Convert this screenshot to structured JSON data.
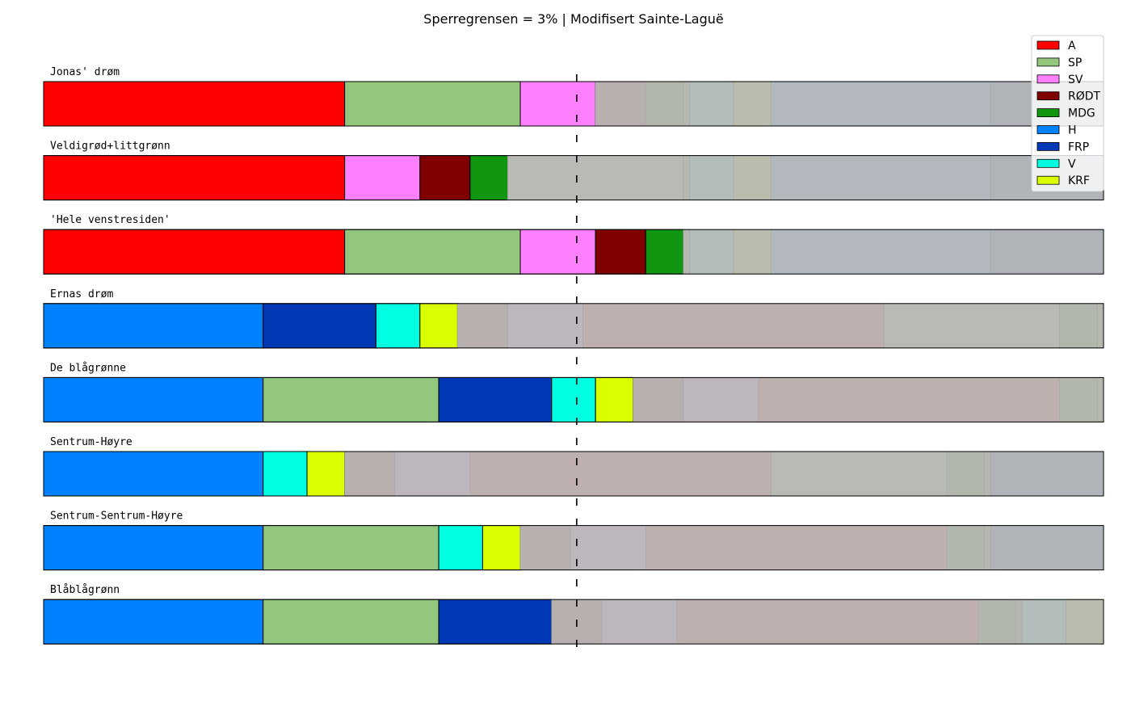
{
  "chart_data": {
    "type": "bar",
    "orientation": "horizontal-stacked",
    "title": "Sperregrensen = 3% | Modifisert Sainte-Laguë",
    "xlim": [
      0,
      169
    ],
    "majority_line": 85,
    "grid": false,
    "legend_placement": "top-right",
    "legend": [
      {
        "name": "A",
        "color": "#ff0000"
      },
      {
        "name": "SP",
        "color": "#94c77e"
      },
      {
        "name": "SV",
        "color": "#ff80ff"
      },
      {
        "name": "RØDT",
        "color": "#800000"
      },
      {
        "name": "MDG",
        "color": "#109610"
      },
      {
        "name": "H",
        "color": "#0082ff"
      },
      {
        "name": "FRP",
        "color": "#0038b5"
      },
      {
        "name": "V",
        "color": "#00ffe0"
      },
      {
        "name": "KRF",
        "color": "#daff00"
      }
    ],
    "rows": [
      {
        "label": "Jonas' drøm",
        "segments": [
          {
            "party": "A",
            "value": 48,
            "color": "#ff0000"
          },
          {
            "party": "SP",
            "value": 28,
            "color": "#94c77e"
          },
          {
            "party": "SV",
            "value": 12,
            "color": "#ff80ff"
          },
          {
            "value": 8,
            "color": "#b7b0af"
          },
          {
            "value": 6,
            "color": "#b2b7ae"
          },
          {
            "value": 1,
            "color": "#b5b8b0"
          },
          {
            "value": 7,
            "color": "#b2bcba"
          },
          {
            "value": 6,
            "color": "#babcad"
          },
          {
            "value": 35,
            "color": "#b2b8bd"
          },
          {
            "value": 18,
            "color": "#b0b3b8"
          }
        ]
      },
      {
        "label": "Veldigrød+littgrønn",
        "segments": [
          {
            "party": "A",
            "value": 48,
            "color": "#ff0000"
          },
          {
            "party": "SV",
            "value": 12,
            "color": "#ff80ff"
          },
          {
            "party": "RØDT",
            "value": 8,
            "color": "#800000"
          },
          {
            "party": "MDG",
            "value": 6,
            "color": "#109610"
          },
          {
            "value": 28,
            "color": "#b8bab5"
          },
          {
            "value": 1,
            "color": "#b5b8b0"
          },
          {
            "value": 7,
            "color": "#b2bcba"
          },
          {
            "value": 6,
            "color": "#babcad"
          },
          {
            "value": 35,
            "color": "#b2b8bd"
          },
          {
            "value": 18,
            "color": "#b0b3b8"
          }
        ]
      },
      {
        "label": "'Hele venstresiden'",
        "segments": [
          {
            "party": "A",
            "value": 48,
            "color": "#ff0000"
          },
          {
            "party": "SP",
            "value": 28,
            "color": "#94c77e"
          },
          {
            "party": "SV",
            "value": 12,
            "color": "#ff80ff"
          },
          {
            "party": "RØDT",
            "value": 8,
            "color": "#800000"
          },
          {
            "party": "MDG",
            "value": 6,
            "color": "#109610"
          },
          {
            "value": 1,
            "color": "#b5b8b0"
          },
          {
            "value": 7,
            "color": "#b2bcba"
          },
          {
            "value": 6,
            "color": "#babcad"
          },
          {
            "value": 35,
            "color": "#b2b8bd"
          },
          {
            "value": 18,
            "color": "#b0b3b8"
          }
        ]
      },
      {
        "label": "Ernas drøm",
        "segments": [
          {
            "party": "H",
            "value": 35,
            "color": "#0082ff"
          },
          {
            "party": "FRP",
            "value": 18,
            "color": "#0038b5"
          },
          {
            "party": "V",
            "value": 7,
            "color": "#00ffe0"
          },
          {
            "party": "KRF",
            "value": 6,
            "color": "#daff00"
          },
          {
            "value": 8,
            "color": "#b7b0af"
          },
          {
            "value": 12,
            "color": "#beb6bd"
          },
          {
            "value": 48,
            "color": "#bdb0af"
          },
          {
            "value": 28,
            "color": "#b8bab5"
          },
          {
            "value": 6,
            "color": "#b2b7ae"
          },
          {
            "value": 1,
            "color": "#b5b8b0"
          }
        ]
      },
      {
        "label": "De blågrønne",
        "segments": [
          {
            "party": "H",
            "value": 35,
            "color": "#0082ff"
          },
          {
            "party": "SP",
            "value": 28,
            "color": "#94c77e"
          },
          {
            "party": "FRP",
            "value": 18,
            "color": "#0038b5"
          },
          {
            "party": "V",
            "value": 7,
            "color": "#00ffe0"
          },
          {
            "party": "KRF",
            "value": 6,
            "color": "#daff00"
          },
          {
            "value": 8,
            "color": "#b7b0af"
          },
          {
            "value": 12,
            "color": "#beb6bd"
          },
          {
            "value": 48,
            "color": "#bdb0af"
          },
          {
            "value": 6,
            "color": "#b2b7ae"
          },
          {
            "value": 1,
            "color": "#b5b8b0"
          }
        ]
      },
      {
        "label": "Sentrum-Høyre",
        "segments": [
          {
            "party": "H",
            "value": 35,
            "color": "#0082ff"
          },
          {
            "party": "V",
            "value": 7,
            "color": "#00ffe0"
          },
          {
            "party": "KRF",
            "value": 6,
            "color": "#daff00"
          },
          {
            "value": 8,
            "color": "#b7b0af"
          },
          {
            "value": 12,
            "color": "#beb6bd"
          },
          {
            "value": 48,
            "color": "#bdb0af"
          },
          {
            "value": 28,
            "color": "#b8bab5"
          },
          {
            "value": 6,
            "color": "#b2b7ae"
          },
          {
            "value": 1,
            "color": "#b5b8b0"
          },
          {
            "value": 18,
            "color": "#b0b3b8"
          }
        ]
      },
      {
        "label": "Sentrum-Sentrum-Høyre",
        "segments": [
          {
            "party": "H",
            "value": 35,
            "color": "#0082ff"
          },
          {
            "party": "SP",
            "value": 28,
            "color": "#94c77e"
          },
          {
            "party": "V",
            "value": 7,
            "color": "#00ffe0"
          },
          {
            "party": "KRF",
            "value": 6,
            "color": "#daff00"
          },
          {
            "value": 8,
            "color": "#b7b0af"
          },
          {
            "value": 12,
            "color": "#beb6bd"
          },
          {
            "value": 48,
            "color": "#bdb0af"
          },
          {
            "value": 6,
            "color": "#b2b7ae"
          },
          {
            "value": 1,
            "color": "#b5b8b0"
          },
          {
            "value": 18,
            "color": "#b0b3b8"
          }
        ]
      },
      {
        "label": "Blåblågrønn",
        "segments": [
          {
            "party": "H",
            "value": 35,
            "color": "#0082ff"
          },
          {
            "party": "SP",
            "value": 28,
            "color": "#94c77e"
          },
          {
            "party": "FRP",
            "value": 18,
            "color": "#0038b5"
          },
          {
            "value": 8,
            "color": "#b7b0af"
          },
          {
            "value": 12,
            "color": "#beb6bd"
          },
          {
            "value": 48,
            "color": "#bdb0af"
          },
          {
            "value": 6,
            "color": "#b2b7ae"
          },
          {
            "value": 1,
            "color": "#b5b8b0"
          },
          {
            "value": 7,
            "color": "#b2bcba"
          },
          {
            "value": 6,
            "color": "#babcad"
          }
        ]
      }
    ]
  }
}
